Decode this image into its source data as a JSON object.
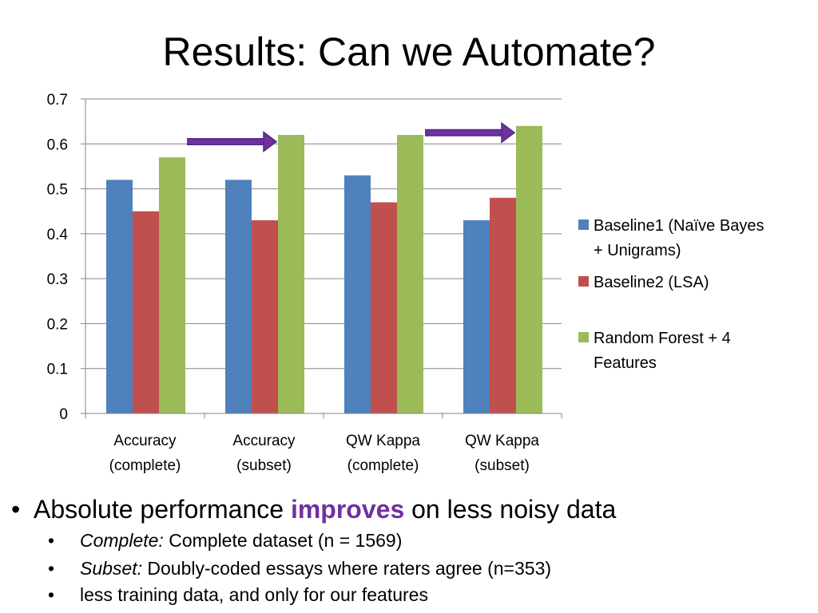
{
  "slide": {
    "title": "Results: Can we Automate?"
  },
  "chart_data": {
    "type": "bar",
    "title": "",
    "xlabel": "",
    "ylabel": "",
    "ylim": [
      0,
      0.7
    ],
    "yticks": [
      "0",
      "0.1",
      "0.2",
      "0.3",
      "0.4",
      "0.5",
      "0.6",
      "0.7"
    ],
    "grid": true,
    "legend_position": "right",
    "categories": [
      [
        "Accuracy",
        "(complete)"
      ],
      [
        "Accuracy",
        "(subset)"
      ],
      [
        "QW Kappa",
        "(complete)"
      ],
      [
        "QW Kappa",
        "(subset)"
      ]
    ],
    "series": [
      {
        "name": [
          "Baseline1 (Naïve Bayes",
          "+ Unigrams)"
        ],
        "color": "#4f81bd",
        "values": [
          0.52,
          0.52,
          0.53,
          0.43
        ]
      },
      {
        "name": [
          "Baseline2 (LSA)"
        ],
        "color": "#c0504d",
        "values": [
          0.45,
          0.43,
          0.47,
          0.48
        ]
      },
      {
        "name": [
          "Random Forest + 4",
          "Features"
        ],
        "color": "#9bbb59",
        "values": [
          0.57,
          0.62,
          0.62,
          0.64
        ]
      }
    ],
    "annotations": [
      {
        "type": "arrow",
        "color": "#7030a0",
        "from_category": 0,
        "to_category": 1,
        "y": 0.605
      },
      {
        "type": "arrow",
        "color": "#7030a0",
        "from_category": 2,
        "to_category": 3,
        "y": 0.625
      }
    ]
  },
  "bullets": {
    "main": {
      "before": "Absolute performance ",
      "highlight": "improves",
      "after": " on less noisy data",
      "highlight_color": "#7030a0"
    },
    "items": [
      {
        "label": "Complete:",
        "text": " Complete dataset (n = 1569)"
      },
      {
        "label": "Subset:",
        "text": "  Doubly-coded essays where raters agree (n=353)"
      },
      {
        "label": "",
        "text": "less training data, and only for our features"
      }
    ]
  }
}
